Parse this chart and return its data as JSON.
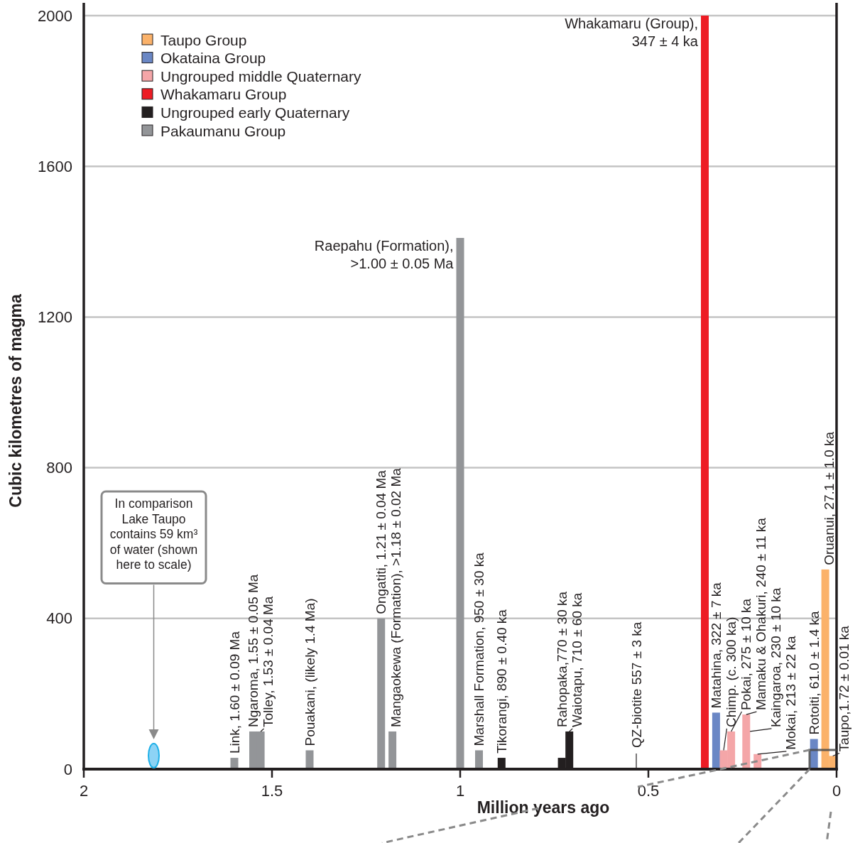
{
  "chart_data": {
    "type": "bar",
    "xlabel": "Million years ago",
    "ylabel": "Cubic kilometres of magma",
    "xlim": [
      2,
      0
    ],
    "xticks": [
      2,
      1.5,
      1,
      0.5,
      0
    ],
    "ylim": [
      0,
      2000
    ],
    "yticks": [
      0,
      400,
      800,
      1200,
      1600,
      2000
    ],
    "grid": "y",
    "legend": "top left",
    "series": [
      {
        "name": "Taupo Group",
        "color": "#fbb26a",
        "x": [
          0.03,
          0.01
        ],
        "values": [
          530,
          35
        ]
      },
      {
        "name": "Okataina Group",
        "color": "#6a87c5",
        "x": [
          0.32,
          0.06
        ],
        "values": [
          150,
          80
        ]
      },
      {
        "name": "Ungrouped middle Quaternary",
        "color": "#f4a6a8",
        "x": [
          0.3,
          0.28,
          0.24,
          0.21
        ],
        "values": [
          50,
          100,
          145,
          40
        ]
      },
      {
        "name": "Whakamaru Group",
        "color": "#ed1c24",
        "x": [
          0.35
        ],
        "values": [
          2000
        ]
      },
      {
        "name": "Ungrouped early Quaternary",
        "color": "#231f20",
        "x": [
          0.89,
          0.73,
          0.71
        ],
        "values": [
          30,
          30,
          100
        ]
      },
      {
        "name": "Pakaumanu Group",
        "color": "#939598",
        "x": [
          1.6,
          1.55,
          1.53,
          1.4,
          1.21,
          1.18,
          1.0,
          0.95
        ],
        "values": [
          30,
          100,
          100,
          50,
          400,
          100,
          1410,
          50
        ]
      }
    ],
    "annotations": [
      {
        "text": "Link, 1.60 ± 0.09 Ma",
        "x": 1.6,
        "y": 30
      },
      {
        "text": "Ngaroma, 1.55 ± 0.05 Ma",
        "x": 1.55,
        "y": 100
      },
      {
        "text": "Tolley, 1.53 ± 0.04 Ma",
        "x": 1.53,
        "y": 100
      },
      {
        "text": "Pouakani, (likely 1.4 Ma)",
        "x": 1.4,
        "y": 50
      },
      {
        "text": "Ongatiti, 1.21 ± 0.04 Ma",
        "x": 1.21,
        "y": 400
      },
      {
        "text": "Mangaokewa (Formation), >1.18 ± 0.02 Ma",
        "x": 1.18,
        "y": 100
      },
      {
        "text": "Raepahu (Formation),\n>1.00 ± 0.05 Ma",
        "x": 1.0,
        "y": 1410
      },
      {
        "text": "Marshall Formation, 950 ± 30 ka",
        "x": 0.95,
        "y": 50
      },
      {
        "text": "Tikorangi, 890 ± 0.40 ka",
        "x": 0.89,
        "y": 30
      },
      {
        "text": "Rahopaka,770 ± 30 ka",
        "x": 0.73,
        "y": 30
      },
      {
        "text": "Waiotapu, 710 ± 60 ka",
        "x": 0.71,
        "y": 100
      },
      {
        "text": "Whakamaru (Group),\n347 ± 4 ka",
        "x": 0.35,
        "y": 2000
      },
      {
        "text": "Matahina, 322 ± 7 ka",
        "x": 0.32,
        "y": 150
      },
      {
        "text": "Chimp. (c. 300 ka)",
        "x": 0.3,
        "y": 50
      },
      {
        "text": "Pokai, 275 ± 10 ka",
        "x": 0.28,
        "y": 100
      },
      {
        "text": "Mamaku & Ohakuri, 240 ± 11 ka",
        "x": 0.24,
        "y": 145
      },
      {
        "text": "Kaingaroa, 230 ± 10 ka",
        "x": 0.23,
        "y": 100
      },
      {
        "text": "Mokai, 213 ± 22 ka",
        "x": 0.21,
        "y": 40
      },
      {
        "text": "Rotoiti, 61.0 ± 1.4 ka",
        "x": 0.06,
        "y": 80
      },
      {
        "text": "Oruanui, 27.1 ± 1.0 ka",
        "x": 0.03,
        "y": 530
      },
      {
        "text": "Taupo,1.72 ± 0.01 ka",
        "x": 0.01,
        "y": 35
      },
      "In comparison Lake Taupo contains 59 km³ of water (shown here to scale)",
      "QZ-biotite 557 ± 3 ka"
    ]
  }
}
